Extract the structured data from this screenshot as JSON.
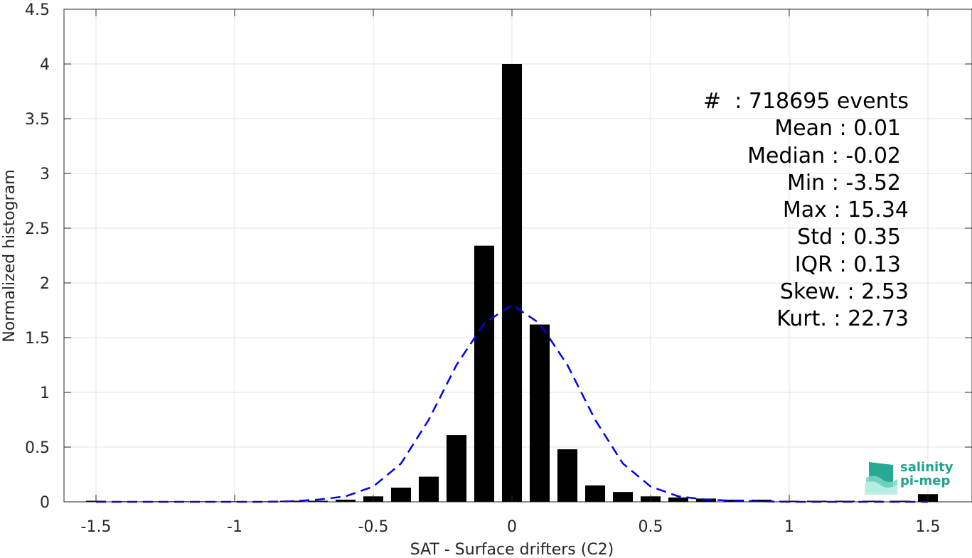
{
  "chart_data": {
    "type": "bar",
    "xlabel": "SAT - Surface drifters (C2)",
    "ylabel": "Normalized histogram",
    "xlim": [
      -1.6,
      1.6
    ],
    "ylim": [
      0,
      4.5
    ],
    "grid": true,
    "xticks": [
      "-1.5",
      "-1",
      "-0.5",
      "0",
      "0.5",
      "1",
      "1.5"
    ],
    "xtick_values": [
      -1.5,
      -1,
      -0.5,
      0,
      0.5,
      1,
      1.5
    ],
    "yticks": [
      "0",
      "0.5",
      "1",
      "1.5",
      "2",
      "2.5",
      "3",
      "3.5",
      "4",
      "4.5"
    ],
    "ytick_values": [
      0,
      0.5,
      1,
      1.5,
      2,
      2.5,
      3,
      3.5,
      4,
      4.5
    ],
    "bin_width": 0.1,
    "bar_color": "#000000",
    "x": [
      -1.5,
      -1.4,
      -1.3,
      -1.2,
      -1.1,
      -1.0,
      -0.9,
      -0.8,
      -0.7,
      -0.6,
      -0.5,
      -0.4,
      -0.3,
      -0.2,
      -0.1,
      0.0,
      0.1,
      0.2,
      0.3,
      0.4,
      0.5,
      0.6,
      0.7,
      0.8,
      0.9,
      1.0,
      1.1,
      1.2,
      1.3,
      1.4,
      1.5
    ],
    "values": [
      0.01,
      0.005,
      0.005,
      0.005,
      0.005,
      0.005,
      0.005,
      0.01,
      0.01,
      0.02,
      0.05,
      0.13,
      0.23,
      0.61,
      2.34,
      4.0,
      1.62,
      0.48,
      0.15,
      0.09,
      0.05,
      0.04,
      0.03,
      0.02,
      0.02,
      0.01,
      0.01,
      0.01,
      0.01,
      0.01,
      0.07
    ],
    "fit_curve": {
      "style": "dashed",
      "color": "#0000ee",
      "x": [
        -1.5,
        -1.4,
        -1.3,
        -1.2,
        -1.1,
        -1.0,
        -0.9,
        -0.8,
        -0.7,
        -0.6,
        -0.5,
        -0.4,
        -0.3,
        -0.2,
        -0.1,
        0.0,
        0.1,
        0.2,
        0.3,
        0.4,
        0.5,
        0.6,
        0.7,
        0.8,
        0.9,
        1.0,
        1.1,
        1.2,
        1.3,
        1.4,
        1.5
      ],
      "y": [
        0.0,
        0.0,
        0.0,
        0.0,
        0.0,
        0.0,
        0.0,
        0.005,
        0.02,
        0.05,
        0.14,
        0.35,
        0.75,
        1.25,
        1.63,
        1.8,
        1.63,
        1.25,
        0.75,
        0.35,
        0.14,
        0.05,
        0.02,
        0.01,
        0.005,
        0.0,
        0.0,
        0.0,
        0.0,
        0.0,
        0.0
      ]
    }
  },
  "stats": [
    "#  : 718695 events",
    "Mean : 0.01",
    "Median : -0.02",
    "Min : -3.52",
    "Max : 15.34",
    "Std : 0.35",
    "IQR : 0.13",
    "Skew. : 2.53",
    "Kurt. : 22.73"
  ],
  "logo": {
    "line1": "salinity",
    "line2": "pi-mep",
    "color": "#1aa58f"
  }
}
